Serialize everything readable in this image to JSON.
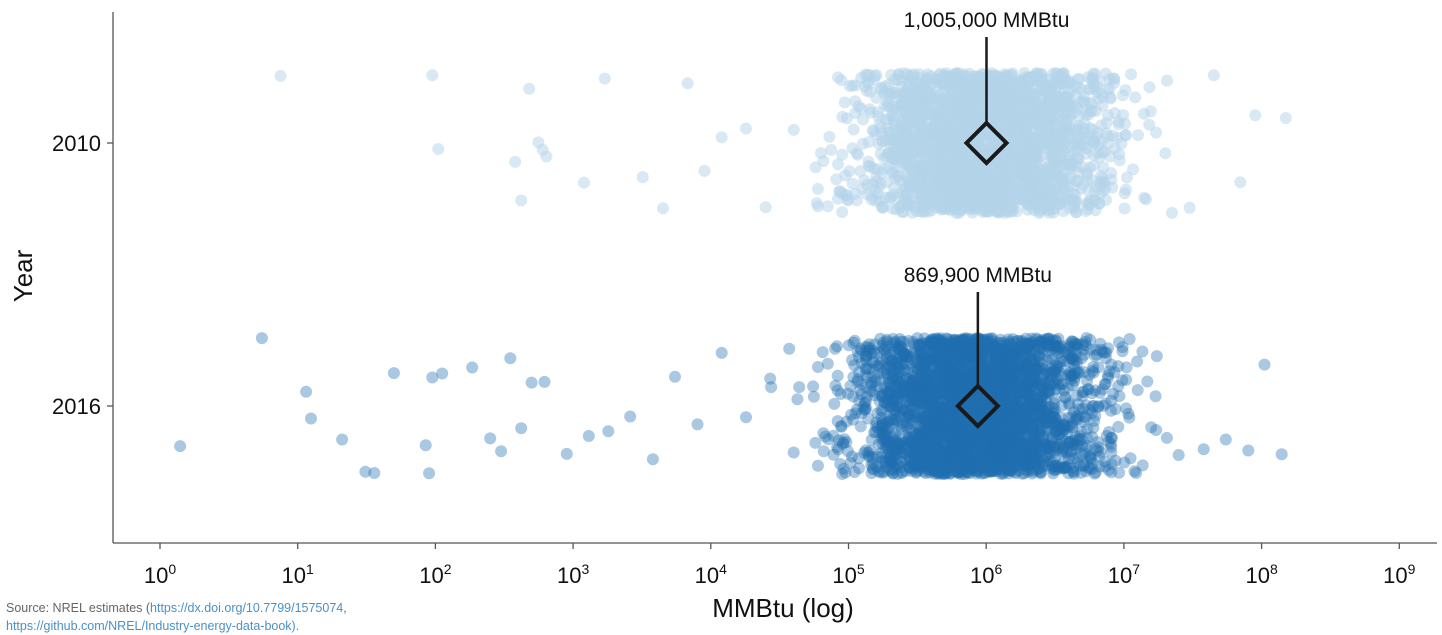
{
  "chart_data": {
    "type": "scatter",
    "title": "",
    "xlabel": "MMBtu (log)",
    "ylabel": "Year",
    "x_scale": "log",
    "xlim": [
      0.5,
      1500000000
    ],
    "x_tick_bases": [
      "10",
      "10",
      "10",
      "10",
      "10",
      "10",
      "10",
      "10",
      "10",
      "10"
    ],
    "x_tick_exponents": [
      "0",
      "1",
      "2",
      "3",
      "4",
      "5",
      "6",
      "7",
      "8",
      "9"
    ],
    "y_categories": [
      "2010",
      "2016"
    ],
    "grid": false,
    "series": [
      {
        "category": "2010",
        "color": "#b3d3ea",
        "median": 1005000,
        "median_label": "1,005,000 MMBtu",
        "sample_points": [
          7.5,
          95,
          105,
          380,
          420,
          480,
          560,
          600,
          640,
          1200,
          1700,
          3200,
          4500,
          6800,
          9000,
          12000,
          18000,
          25000,
          40000,
          60000,
          90000,
          140000,
          200000,
          300000,
          450000,
          650000,
          900000,
          1300000,
          1900000,
          2800000,
          4000000,
          6000000,
          9000000,
          14000000,
          20000000,
          30000000,
          45000000,
          70000000,
          90000000,
          150000000
        ]
      },
      {
        "category": "2016",
        "color": "#1f6fb0",
        "median": 869900,
        "median_label": "869,900 MMBtu",
        "sample_points": [
          1.4,
          5.5,
          11.5,
          12.5,
          21,
          31,
          36,
          50,
          85,
          90,
          95,
          112,
          185,
          250,
          300,
          350,
          420,
          500,
          620,
          900,
          1300,
          1800,
          2600,
          3800,
          5500,
          8000,
          12000,
          18000,
          27000,
          40000,
          60000,
          90000,
          140000,
          210000,
          320000,
          480000,
          700000,
          1000000,
          1500000,
          2200000,
          3300000,
          5000000,
          7500000,
          11000000,
          17000000,
          25000000,
          38000000,
          55000000,
          80000000,
          105000000,
          140000000
        ]
      }
    ]
  },
  "source": {
    "prefix": "Source: NREL estimates (",
    "link1": "https://dx.doi.org/10.7799/1575074",
    "separator": ",",
    "line2": "https://github.com/NREL/Industry-energy-data-book)."
  }
}
